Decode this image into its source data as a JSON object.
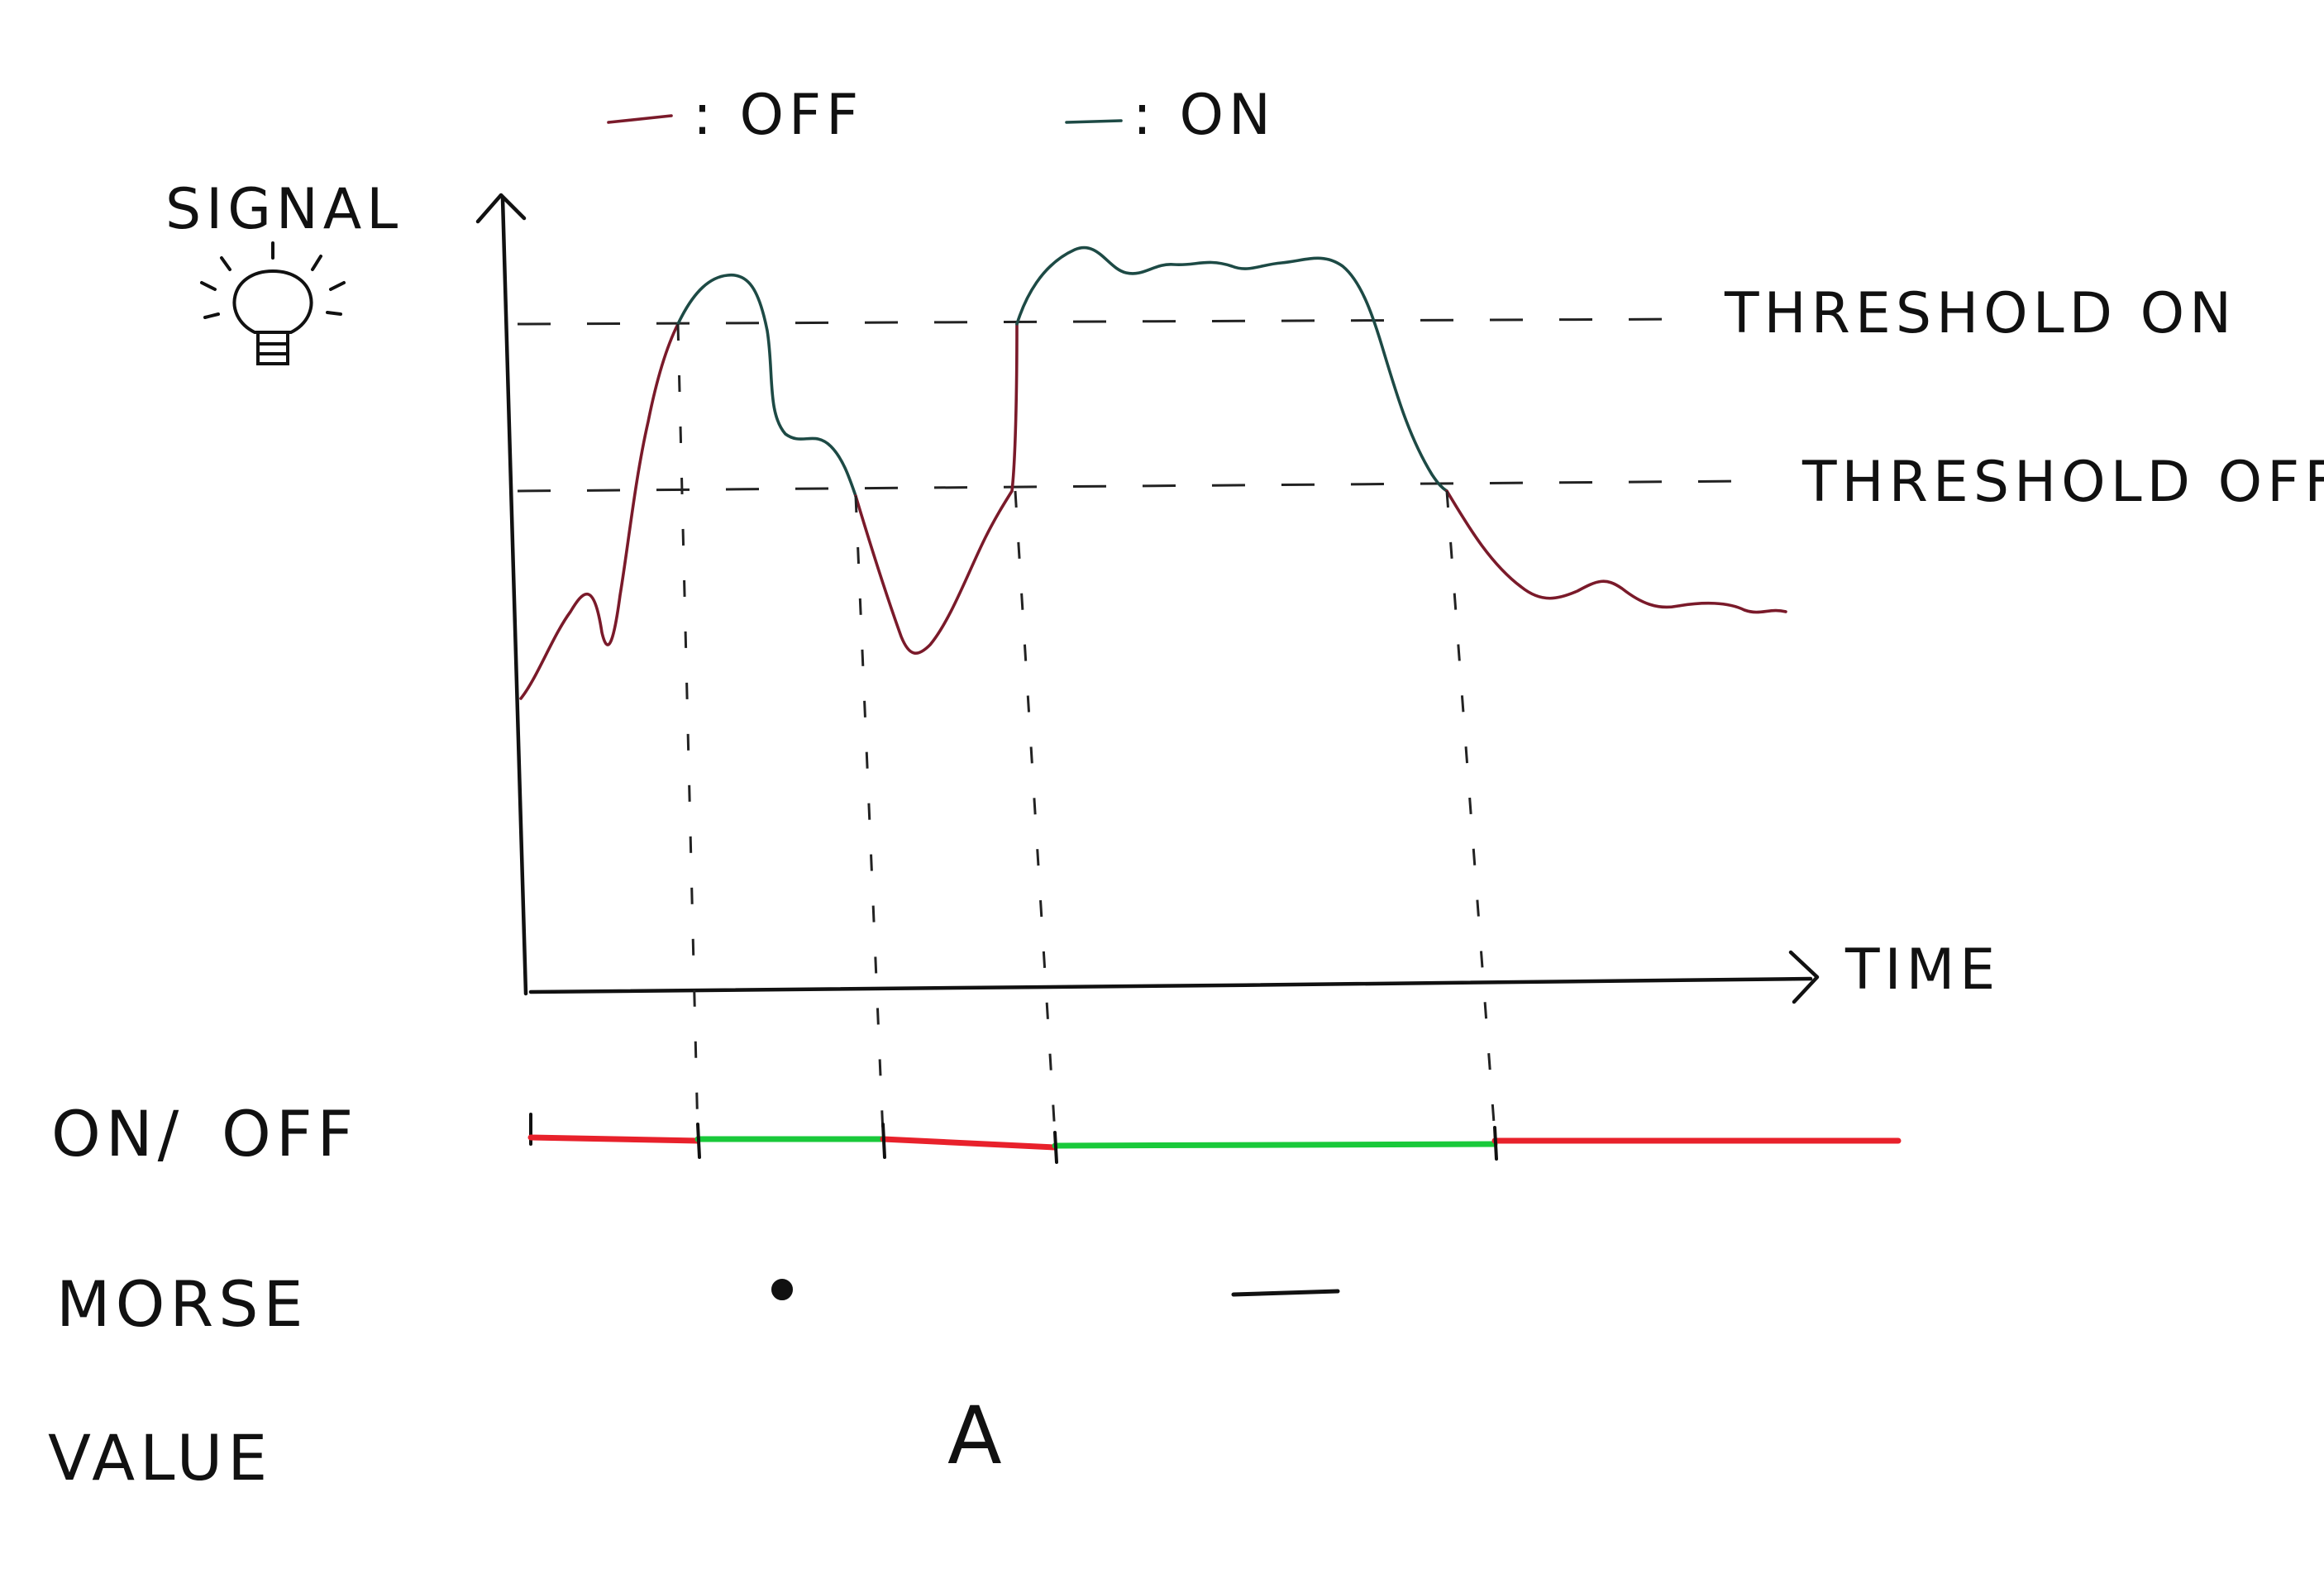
{
  "colors": {
    "off": "#7a1a2a",
    "on": "#1d4a45",
    "bar_off": "#e8212b",
    "bar_on": "#19c93a",
    "ink": "#111111"
  },
  "legend": {
    "off_label": ": OFF",
    "on_label": ": ON"
  },
  "axes": {
    "y_label": "SIGNAL",
    "x_label": "TIME",
    "y_icon": "lightbulb-icon"
  },
  "thresholds": {
    "on_label": "THRESHOLD ON",
    "off_label": "THRESHOLD OFF"
  },
  "rows": {
    "onoff_on": "ON/",
    "onoff_off": "OFF",
    "morse_label": "MORSE",
    "value_label": "VALUE",
    "morse_symbols": [
      "dot",
      "dash"
    ],
    "value": "A"
  },
  "states": [
    "OFF",
    "ON",
    "OFF",
    "ON",
    "OFF"
  ]
}
